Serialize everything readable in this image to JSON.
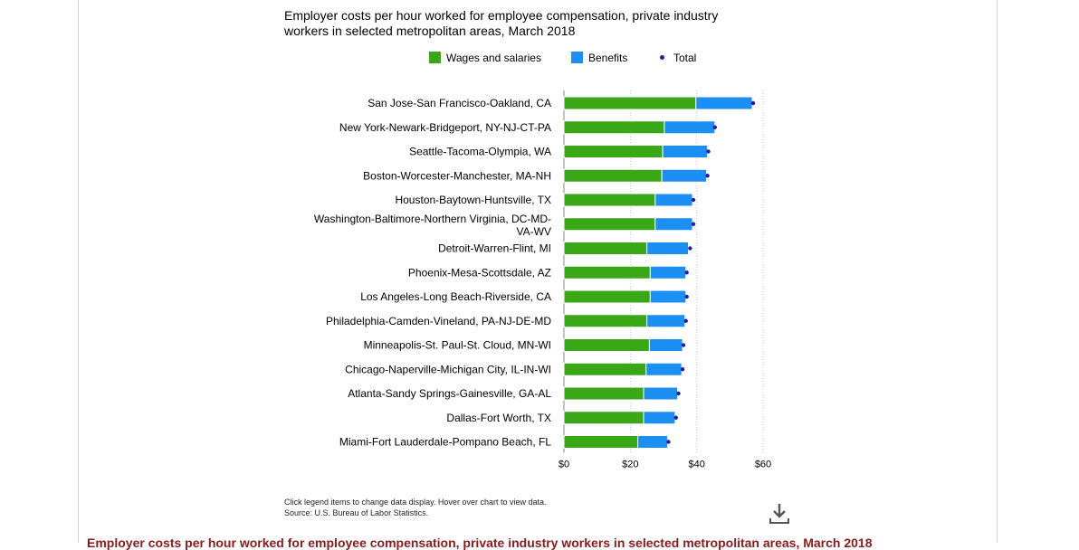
{
  "chart_data": {
    "type": "bar",
    "stacked": true,
    "orientation": "horizontal",
    "title": "Employer costs per hour worked for employee compensation, private industry workers in selected metropolitan areas, March 2018",
    "categories": [
      "San Jose-San Francisco-Oakland, CA",
      "New York-Newark-Bridgeport, NY-NJ-CT-PA",
      "Seattle-Tacoma-Olympia, WA",
      "Boston-Worcester-Manchester, MA-NH",
      "Houston-Baytown-Huntsville, TX",
      "Washington-Baltimore-Northern Virginia, DC-MD-VA-WV",
      "Detroit-Warren-Flint, MI",
      "Phoenix-Mesa-Scottsdale, AZ",
      "Los Angeles-Long Beach-Riverside, CA",
      "Philadelphia-Camden-Vineland, PA-NJ-DE-MD",
      "Minneapolis-St. Paul-St. Cloud, MN-WI",
      "Chicago-Naperville-Michigan City, IL-IN-WI",
      "Atlanta-Sandy Springs-Gainesville, GA-AL",
      "Dallas-Fort Worth, TX",
      "Miami-Fort Lauderdale-Pompano Beach, FL"
    ],
    "series": [
      {
        "name": "Wages and salaries",
        "color": "#3aa816",
        "values": [
          39.75,
          30.25,
          29.75,
          29.5,
          27.5,
          27.5,
          25.0,
          26.0,
          26.0,
          25.0,
          25.75,
          24.75,
          24.0,
          24.0,
          22.25
        ]
      },
      {
        "name": "Benefits",
        "color": "#1b8ff2",
        "values": [
          17.0,
          15.25,
          13.5,
          13.5,
          11.25,
          11.25,
          12.5,
          10.75,
          10.75,
          11.5,
          10.0,
          10.75,
          10.25,
          9.5,
          9.0
        ]
      },
      {
        "name": "Total",
        "color": "#2a1a9e",
        "marker": "dot",
        "values": [
          57.0,
          45.5,
          43.5,
          43.25,
          39.0,
          39.0,
          38.0,
          37.0,
          37.0,
          36.75,
          36.0,
          35.75,
          34.5,
          33.75,
          31.5
        ]
      }
    ],
    "xlim": [
      0,
      60
    ],
    "xticks": [
      "$0",
      "$20",
      "$40",
      "$60"
    ],
    "xtick_values": [
      0,
      20,
      40,
      60
    ],
    "grid": true,
    "legend": "top"
  },
  "footnote": {
    "line1": "Click legend items to change data display. Hover over chart to view data.",
    "line2": "Source: U.S. Bureau of Labor Statistics."
  },
  "bottom_title": "Employer costs per hour worked for employee compensation, private industry workers in selected metropolitan areas, March 2018",
  "icons": {
    "download": "download-icon"
  }
}
